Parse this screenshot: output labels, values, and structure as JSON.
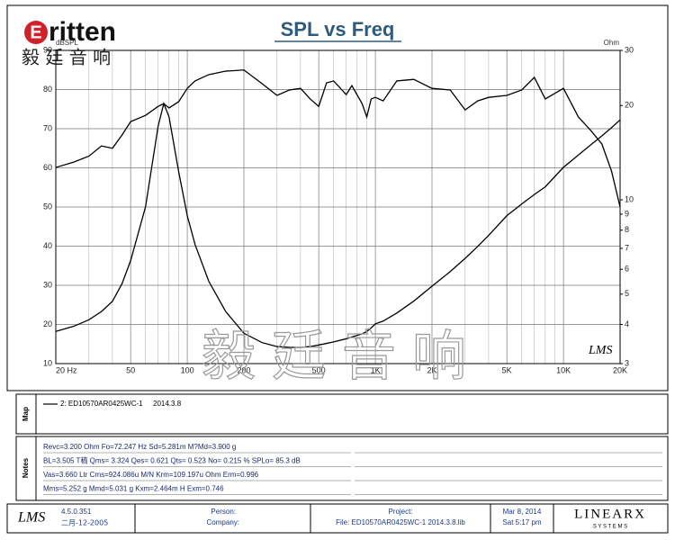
{
  "logo": {
    "mark": "E",
    "name": "ritten",
    "chinese": "毅 廷 音 响"
  },
  "watermark": "毅廷音响",
  "lms_mark": "LMS",
  "chart_data": {
    "type": "line",
    "title": "SPL vs Freq",
    "ylabel": "dBSPL",
    "y2label": "Ohm",
    "xlog": true,
    "y2log": true,
    "grid": true,
    "x": [
      20,
      25,
      30,
      35,
      40,
      45,
      50,
      60,
      70,
      75,
      80,
      90,
      100,
      110,
      130,
      160,
      200,
      250,
      300,
      350,
      400,
      450,
      500,
      550,
      600,
      700,
      750,
      850,
      900,
      950,
      1000,
      1100,
      1300,
      1600,
      2000,
      2500,
      3000,
      3500,
      4000,
      5000,
      6000,
      7000,
      8000,
      10000,
      12000,
      14000,
      16000,
      18000,
      20000
    ],
    "series": [
      {
        "name": "2: ED10570AR0425WC-1",
        "color": "#000000",
        "values": [
          60.1,
          61.5,
          63,
          65.6,
          65,
          68.4,
          71.8,
          73.4,
          75.7,
          76.4,
          75.3,
          76.9,
          80.3,
          82.2,
          83.8,
          84.7,
          85,
          81.5,
          78.5,
          79.9,
          80.3,
          77.6,
          75.7,
          81.7,
          82.2,
          78.7,
          81,
          76.4,
          73,
          77.6,
          78,
          77.1,
          82.2,
          82.6,
          80.3,
          79.9,
          74.8,
          77.1,
          78,
          78.5,
          79.9,
          83.1,
          77.6,
          80.3,
          73,
          69.5,
          66.1,
          59.2,
          50
        ]
      },
      {
        "color": "#000000",
        "axis": "y2",
        "values": [
          3.8,
          3.95,
          4.14,
          4.4,
          4.74,
          5.4,
          6.4,
          9.5,
          17.2,
          20.3,
          18.4,
          12.3,
          8.9,
          7.2,
          5.5,
          4.4,
          3.75,
          3.5,
          3.4,
          3.38,
          3.38,
          3.4,
          3.44,
          3.48,
          3.52,
          3.6,
          3.65,
          3.73,
          3.8,
          3.9,
          4.02,
          4.1,
          4.35,
          4.75,
          5.3,
          5.9,
          6.5,
          7.1,
          7.7,
          8.9,
          9.7,
          10.4,
          11.0,
          12.7,
          13.9,
          15.0,
          16.0,
          17.0,
          18.0
        ]
      }
    ],
    "xlim": [
      20,
      20000
    ],
    "xticks": [
      {
        "value": 20,
        "label": "20 Hz"
      },
      50,
      100,
      200,
      500,
      {
        "value": 1000,
        "label": "1K"
      },
      {
        "value": 2000,
        "label": "2K"
      },
      {
        "value": 5000,
        "label": "5K"
      },
      {
        "value": 10000,
        "label": "10K"
      },
      {
        "value": 20000,
        "label": "20K"
      }
    ],
    "xminor": [
      30,
      40,
      60,
      70,
      80,
      90,
      300,
      400,
      600,
      700,
      800,
      900,
      3000,
      4000,
      6000,
      7000,
      8000,
      9000
    ],
    "ylim": [
      10,
      90
    ],
    "yticks": [
      10,
      20,
      30,
      40,
      50,
      60,
      70,
      80,
      90
    ],
    "y2lim": [
      3,
      30
    ],
    "y2ticks": [
      3,
      4,
      5,
      6,
      7,
      8,
      9,
      10,
      20,
      30
    ]
  },
  "map": {
    "label": "Map",
    "date": "2014.3.8"
  },
  "notes": {
    "label": "Notes",
    "lines": [
      "Revc=3.200 Ohm  Fo=72.247 Hz  Sd=5.281m  M?Md=3.900 g",
      "BL=3.505 T稿  Qms= 3.324  Qes= 0.621  Qts= 0.523  No= 0.215 %  SPLo= 85.3 dB",
      "Vas=3.660 Ltr  Cms=924.086u M/N  Krm=109.197u Ohm  Erm=0.996",
      "Mms=5.252 g  Mmd=5.031 g  Kxm=2.464m H  Exm=0.746"
    ]
  },
  "footer": {
    "lms": "LMS",
    "version": "4.5.0.351",
    "build_date": "二月-12-2005",
    "person": "Person:",
    "company": "Company:",
    "project": "Project:",
    "file": "File: ED10570AR0425WC-1  2014.3.8.lib",
    "date": "Mar  8, 2014",
    "time": "Sat  5:17 pm",
    "brand": "LINEARX",
    "brand_sub": "S Y S T E M S"
  }
}
